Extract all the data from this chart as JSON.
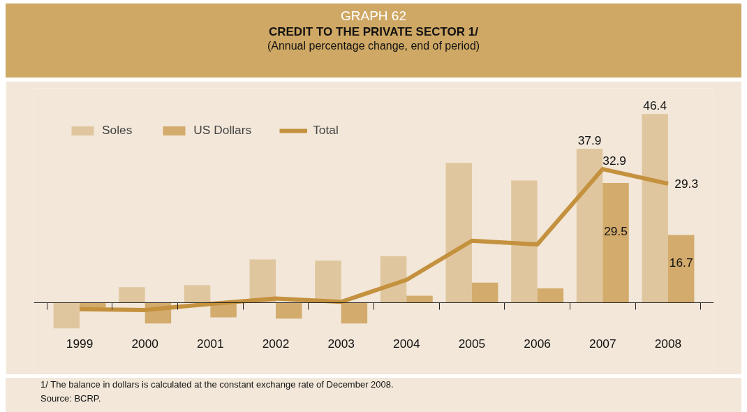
{
  "chart_data": {
    "type": "bar",
    "title": "CREDIT TO THE PRIVATE SECTOR 1/",
    "subtitle": "(Annual percentage change, end of period)",
    "annotations": [
      "GRAPH 62",
      "1/  The balance in dollars is calculated at the constant exchange rate of December 2008.",
      "Source: BCRP."
    ],
    "categories": [
      "1999",
      "2000",
      "2001",
      "2002",
      "2003",
      "2004",
      "2005",
      "2006",
      "2007",
      "2008"
    ],
    "series": [
      {
        "name": "Soles",
        "color": "#e0c69e",
        "values": [
          -6.2,
          3.9,
          4.4,
          10.7,
          10.4,
          11.5,
          34.4,
          30.1,
          37.9,
          46.4
        ],
        "value_labels": [
          null,
          null,
          null,
          null,
          null,
          null,
          null,
          null,
          "37.9",
          "46.4"
        ]
      },
      {
        "name": "US Dollars",
        "color": "#d3ab6c",
        "values": [
          -1.1,
          -5.0,
          -3.5,
          -3.8,
          -5.0,
          1.8,
          5.0,
          3.6,
          29.5,
          16.7
        ],
        "value_labels": [
          null,
          null,
          null,
          null,
          null,
          null,
          null,
          null,
          "29.5",
          "16.7"
        ]
      },
      {
        "name": "Total",
        "type": "line",
        "color": "#c4913e",
        "values": [
          -1.5,
          -1.7,
          -0.2,
          1.1,
          0.3,
          5.7,
          15.3,
          14.4,
          32.9,
          29.3
        ],
        "value_labels": [
          null,
          null,
          null,
          null,
          null,
          null,
          null,
          null,
          "32.9",
          "29.3"
        ]
      }
    ],
    "legend": "top left",
    "grid": false
  }
}
